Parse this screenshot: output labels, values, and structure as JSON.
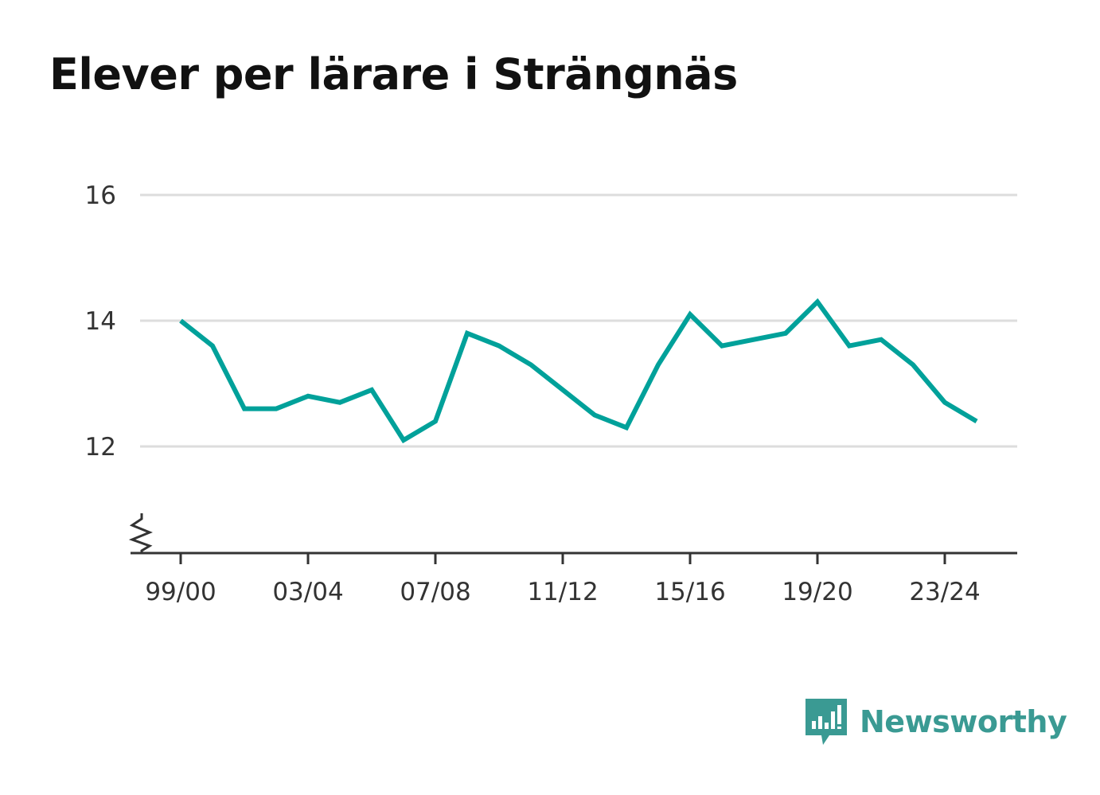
{
  "colors": {
    "line": "#00a19a",
    "grid": "#dddddd",
    "axis": "#333333",
    "brand": "#3a9a93"
  },
  "brand": {
    "name": "Newsworthy",
    "icon": "newsworthy-logo-icon"
  },
  "chart_data": {
    "type": "line",
    "title": "Elever per lärare i Strängnäs",
    "xlabel": "",
    "ylabel": "",
    "x": [
      "99/00",
      "00/01",
      "01/02",
      "02/03",
      "03/04",
      "04/05",
      "05/06",
      "06/07",
      "07/08",
      "08/09",
      "09/10",
      "10/11",
      "11/12",
      "12/13",
      "13/14",
      "14/15",
      "15/16",
      "16/17",
      "17/18",
      "18/19",
      "19/20",
      "20/21",
      "21/22",
      "22/23",
      "23/24",
      "24/25"
    ],
    "series": [
      {
        "values": [
          14.0,
          13.6,
          12.6,
          12.6,
          12.8,
          12.7,
          12.9,
          12.1,
          12.4,
          13.8,
          13.6,
          13.3,
          12.9,
          12.5,
          12.3,
          13.3,
          14.1,
          13.6,
          13.7,
          13.8,
          14.3,
          13.6,
          13.7,
          13.3,
          12.7,
          12.4
        ]
      }
    ],
    "yticks": [
      12,
      14,
      16
    ],
    "xticks": [
      "99/00",
      "03/04",
      "07/08",
      "11/12",
      "15/16",
      "19/20",
      "23/24"
    ],
    "ylim": [
      10.3,
      16
    ],
    "y_axis_break": true,
    "grid": true,
    "legend": "none"
  }
}
